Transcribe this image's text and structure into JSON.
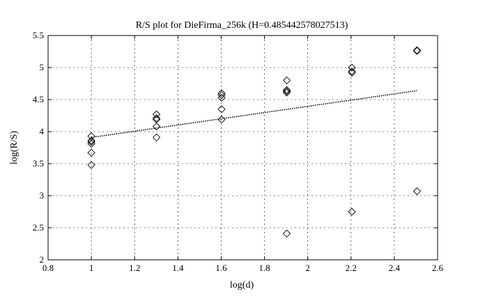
{
  "chart_data": {
    "type": "scatter",
    "title": "R/S plot for DieFirma_256k (H=0.485442578027513)",
    "xlabel": "log(d)",
    "ylabel": "log(R/S)",
    "xlim": [
      0.8,
      2.6
    ],
    "ylim": [
      2,
      5.5
    ],
    "xticks": [
      "0.8",
      "1",
      "1.2",
      "1.4",
      "1.6",
      "1.8",
      "2",
      "2.2",
      "2.4",
      "2.6"
    ],
    "yticks": [
      "2",
      "2.5",
      "3",
      "3.5",
      "4",
      "4.5",
      "5",
      "5.5"
    ],
    "grid": true,
    "marker": "diamond",
    "points": [
      {
        "x": 1.0,
        "y": 3.48
      },
      {
        "x": 1.0,
        "y": 3.67
      },
      {
        "x": 1.0,
        "y": 3.81
      },
      {
        "x": 1.0,
        "y": 3.84
      },
      {
        "x": 1.0,
        "y": 3.86
      },
      {
        "x": 1.0,
        "y": 3.93
      },
      {
        "x": 1.301,
        "y": 3.91
      },
      {
        "x": 1.301,
        "y": 4.08
      },
      {
        "x": 1.301,
        "y": 4.19
      },
      {
        "x": 1.301,
        "y": 4.21
      },
      {
        "x": 1.301,
        "y": 4.27
      },
      {
        "x": 1.602,
        "y": 4.19
      },
      {
        "x": 1.602,
        "y": 4.35
      },
      {
        "x": 1.602,
        "y": 4.53
      },
      {
        "x": 1.602,
        "y": 4.57
      },
      {
        "x": 1.602,
        "y": 4.6
      },
      {
        "x": 1.903,
        "y": 2.41
      },
      {
        "x": 1.903,
        "y": 4.61
      },
      {
        "x": 1.903,
        "y": 4.63
      },
      {
        "x": 1.903,
        "y": 4.65
      },
      {
        "x": 1.903,
        "y": 4.8
      },
      {
        "x": 2.204,
        "y": 2.75
      },
      {
        "x": 2.204,
        "y": 4.92
      },
      {
        "x": 2.204,
        "y": 4.94
      },
      {
        "x": 2.204,
        "y": 5.0
      },
      {
        "x": 2.505,
        "y": 3.07
      },
      {
        "x": 2.505,
        "y": 5.26
      },
      {
        "x": 2.505,
        "y": 5.27
      }
    ],
    "fit_line": {
      "style": "dotted",
      "points": [
        [
          1.0,
          3.91
        ],
        [
          2.505,
          4.64
        ]
      ]
    },
    "colors": {
      "marker": "#000000",
      "line": "#000000",
      "grid": "#000000"
    }
  }
}
